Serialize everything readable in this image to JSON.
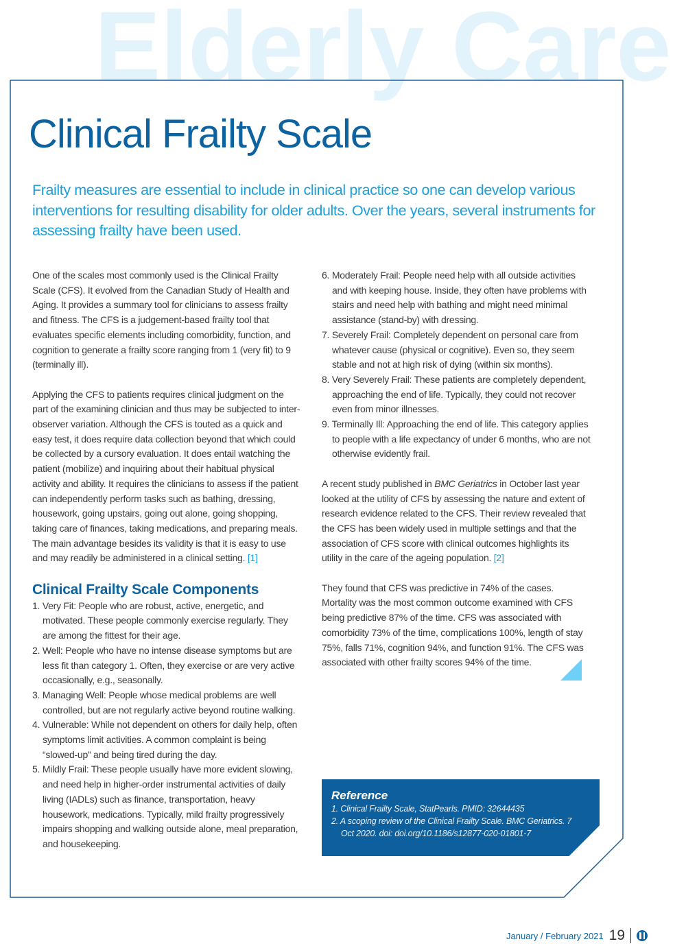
{
  "watermark": "Elderly Care",
  "title": "Clinical Frailty Scale",
  "lead": "Frailty measures are essential to include in clinical practice so one can develop various interventions for resulting disability for older adults. Over the years, several instruments for assessing frailty have been used.",
  "left": {
    "p1": "One of the scales most commonly used is the Clinical Frailty Scale (CFS). It evolved from the Canadian Study of Health and Aging. It provides a summary tool for clinicians to assess frailty and fitness. The CFS is a judgement-based frailty tool that evaluates specific elements including comorbidity, function, and cognition to generate a frailty score ranging from 1 (very fit) to 9 (terminally ill).",
    "p2": "Applying the CFS to patients requires clinical judgment on the part of the examining clinician and thus may be subjected to inter-observer variation. Although the CFS is touted as a quick and easy test, it does require data collection beyond that which could be collected by a cursory evaluation. It does entail watching the patient (mobilize) and inquiring about their habitual physical activity and ability. It requires the clinicians to assess if the patient can independently perform tasks such as bathing, dressing, housework, going upstairs, going out alone, going shopping, taking care of finances, taking medications, and preparing meals. The main advantage besides its validity is that it is easy to use and may readily be administered in a clinical setting.",
    "p2_ref": "[1]",
    "heading": "Clinical Frailty Scale Components",
    "items": [
      "1. Very Fit: People who are robust, active, energetic, and motivated. These people commonly exercise regularly. They are among the fittest for their age.",
      "2. Well: People who have no intense disease symptoms but are less fit than category 1. Often, they exercise or are very active occasionally, e.g., seasonally.",
      "3. Managing Well: People whose medical problems are well controlled, but are not regularly active beyond routine walking.",
      "4. Vulnerable: While not dependent on others for daily help, often symptoms limit activities. A common complaint is being “slowed-up” and being tired during the day.",
      "5. Mildly Frail: These people usually have more evident slowing, and need help in higher-order instrumental activities of daily living (IADLs) such as finance, transportation, heavy housework, medications. Typically, mild frailty progressively impairs shopping and walking outside alone, meal preparation, and housekeeping."
    ]
  },
  "right": {
    "items": [
      "6. Moderately Frail: People need help with all outside activities and with keeping house. Inside, they often have problems with stairs and need help with bathing and might need minimal assistance (stand-by) with dressing.",
      "7. Severely Frail: Completely dependent on personal care from whatever cause (physical or cognitive). Even so, they seem stable and not at high risk of dying (within six months).",
      "8. Very Severely Frail: These patients are completely dependent, approaching the end of life. Typically, they could not recover even from minor illnesses.",
      "9. Terminally Ill: Approaching the end of life. This category applies to people with a life expectancy of under 6 months, who are not otherwise evidently frail."
    ],
    "p1_a": "A recent study published in ",
    "p1_journal": "BMC Geriatrics",
    "p1_b": " in October last year looked at the utility of CFS by assessing the nature and extent of research evidence related to the CFS. Their review revealed that the CFS has been widely used in multiple settings and that the association of CFS score with clinical outcomes highlights its utility in the care of the ageing population.",
    "p1_ref": "[2]",
    "p2": "They found that CFS was predictive in 74% of the cases. Mortality was the most common outcome examined with CFS being predictive 87% of the time. CFS was associated with comorbidity 73% of the time, complications 100%, length of stay 75%, falls 71%, cognition 94%, and function 91%. The CFS was associated with other frailty scores 94% of the time."
  },
  "reference": {
    "heading": "Reference",
    "items": [
      "1. Clinical Frailty Scale, StatPearls. PMID: 32644435",
      "2. A scoping review of the Clinical Frailty Scale. BMC Geriatrics. 7 Oct 2020. doi: doi.org/10.1186/s12877-020-01801-7"
    ]
  },
  "footer": {
    "issue": "January / February 2021",
    "page": "19",
    "logo_icon": "publisher-logo-icon"
  },
  "colors": {
    "brand_blue": "#0d62a0",
    "accent_cyan": "#1aa0dc",
    "watermark": "#e3f3fc",
    "triangle": "#6fd0f7"
  }
}
